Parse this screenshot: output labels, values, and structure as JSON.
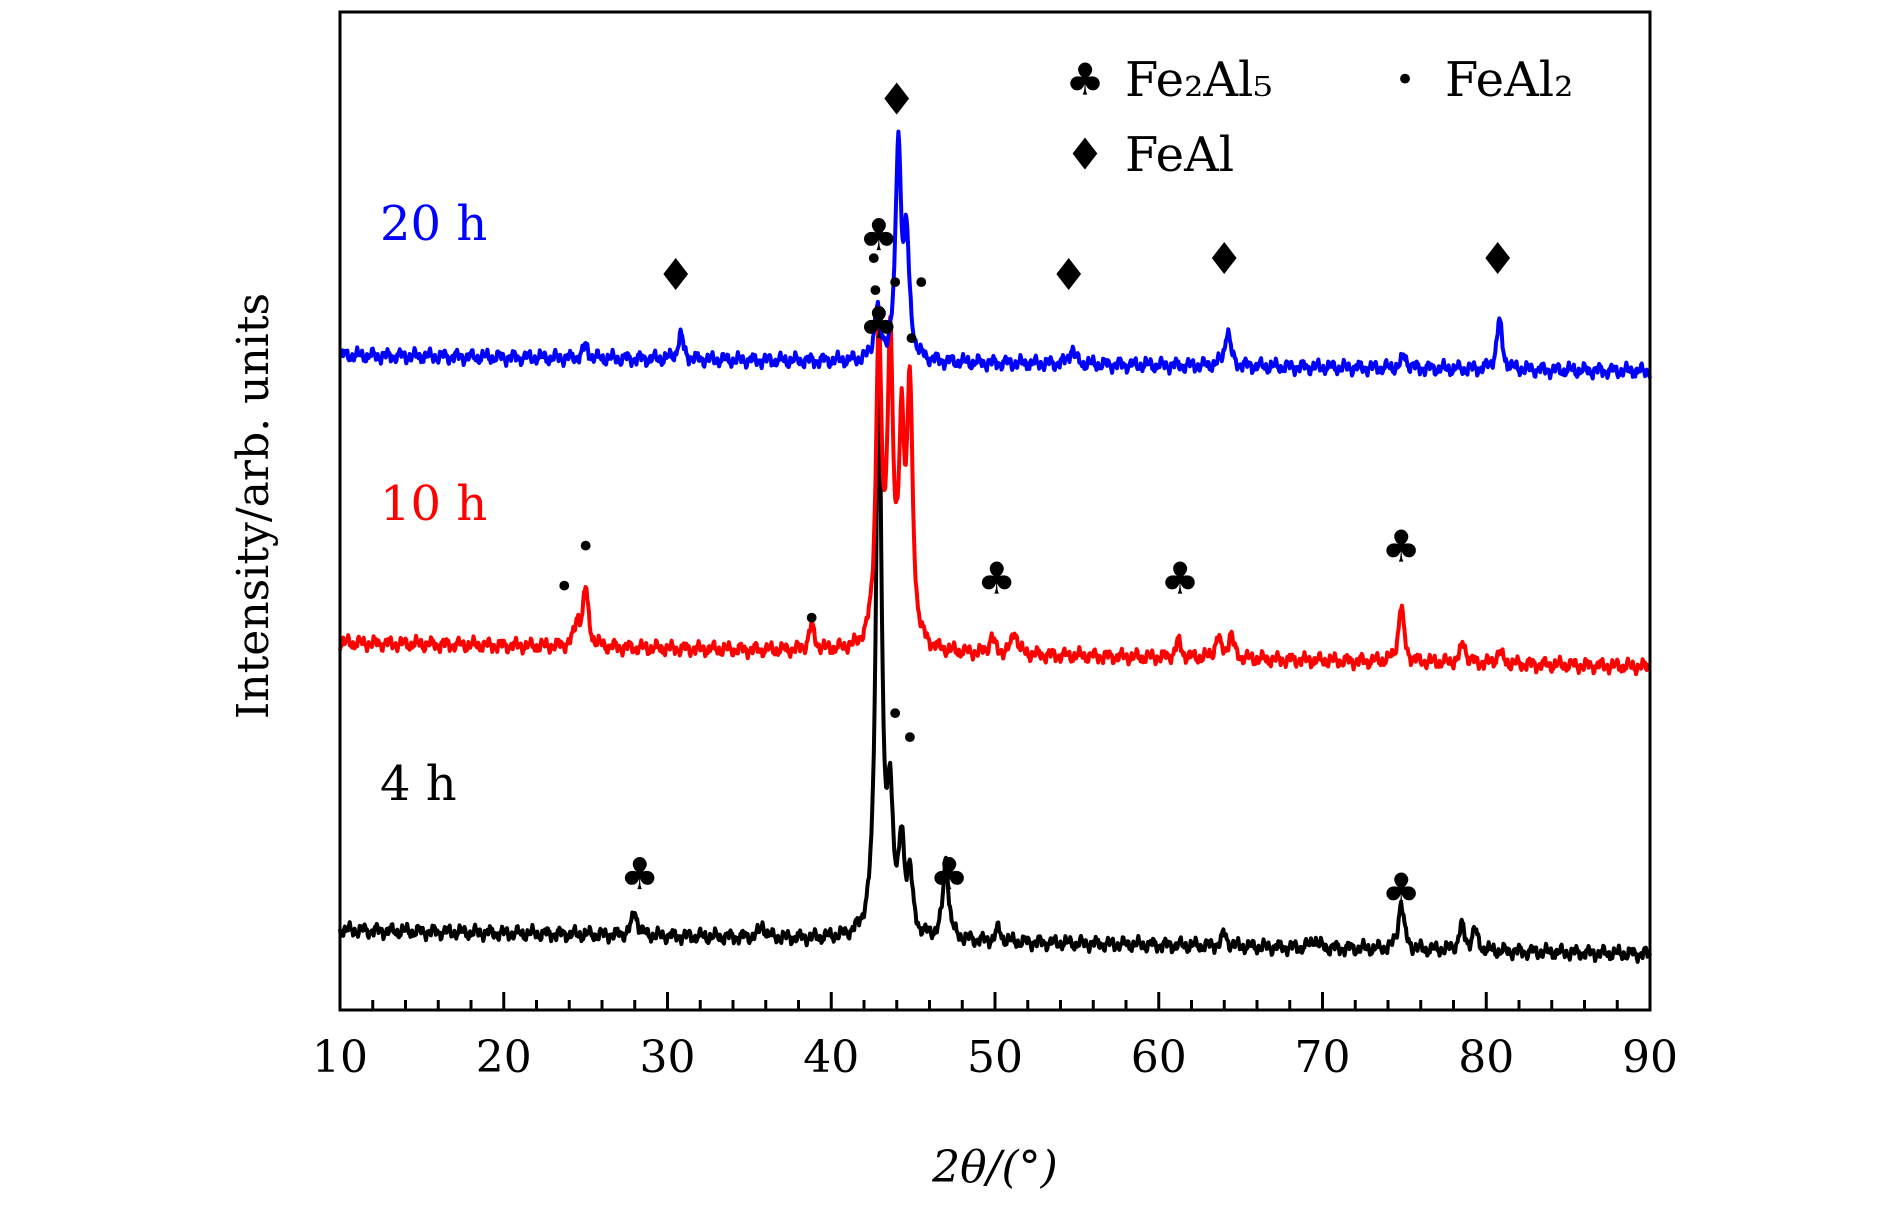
{
  "chart_data": {
    "type": "line",
    "xlabel": "2θ/(°)",
    "ylabel": "Intensity/arb. units",
    "xlim": [
      10,
      90
    ],
    "ylim": [
      0,
      125
    ],
    "x_ticks": [
      10,
      20,
      30,
      40,
      50,
      60,
      70,
      80,
      90
    ],
    "y_ticks_shown": false,
    "grid": false,
    "legend_position": "top-right",
    "legend": [
      {
        "symbol": "♣",
        "label": "Fe₂Al₅"
      },
      {
        "symbol": "•",
        "label": "FeAl₂"
      },
      {
        "symbol": "♦",
        "label": "FeAl"
      }
    ],
    "series": [
      {
        "name": "4 h",
        "color": "#000000",
        "baseline_start": 10.0,
        "baseline_end": 7.0,
        "peaks": [
          [
            28.0,
            3
          ],
          [
            35.8,
            1.5
          ],
          [
            42.9,
            74
          ],
          [
            43.6,
            16
          ],
          [
            44.3,
            11
          ],
          [
            44.8,
            7
          ],
          [
            47.0,
            10
          ],
          [
            50.2,
            1.5
          ],
          [
            64.0,
            1.5
          ],
          [
            69.5,
            1.2
          ],
          [
            74.8,
            6
          ],
          [
            78.5,
            3
          ],
          [
            79.3,
            2.5
          ]
        ],
        "annotations": [
          {
            "x": 28.3,
            "y": 17,
            "symbol": "♣"
          },
          {
            "x": 42.9,
            "y": 86,
            "symbol": "♣"
          },
          {
            "x": 43.9,
            "y": 37,
            "symbol": "•"
          },
          {
            "x": 44.8,
            "y": 34,
            "symbol": "•"
          },
          {
            "x": 47.2,
            "y": 17,
            "symbol": "♣"
          },
          {
            "x": 74.8,
            "y": 15,
            "symbol": "♣"
          }
        ]
      },
      {
        "name": "10 h",
        "color": "#ff0000",
        "baseline_start": 46.0,
        "baseline_end": 43.0,
        "peaks": [
          [
            24.5,
            3
          ],
          [
            25.0,
            7
          ],
          [
            38.8,
            3
          ],
          [
            42.9,
            39
          ],
          [
            43.6,
            37
          ],
          [
            44.3,
            25
          ],
          [
            44.8,
            31
          ],
          [
            49.8,
            2
          ],
          [
            51.2,
            3
          ],
          [
            61.2,
            2
          ],
          [
            63.6,
            2.5
          ],
          [
            64.4,
            3
          ],
          [
            74.8,
            7
          ],
          [
            78.6,
            2.5
          ],
          [
            80.8,
            1.5
          ]
        ],
        "annotations": [
          {
            "x": 23.7,
            "y": 53,
            "symbol": "•"
          },
          {
            "x": 25.0,
            "y": 58,
            "symbol": "•"
          },
          {
            "x": 38.8,
            "y": 49,
            "symbol": "•"
          },
          {
            "x": 42.9,
            "y": 97,
            "symbol": "♣"
          },
          {
            "x": 42.7,
            "y": 90,
            "symbol": "•"
          },
          {
            "x": 43.9,
            "y": 91,
            "symbol": "•"
          },
          {
            "x": 44.9,
            "y": 84,
            "symbol": "•"
          },
          {
            "x": 50.1,
            "y": 54,
            "symbol": "♣"
          },
          {
            "x": 61.3,
            "y": 54,
            "symbol": "♣"
          },
          {
            "x": 74.8,
            "y": 58,
            "symbol": "♣"
          }
        ]
      },
      {
        "name": "20 h",
        "color": "#0000ff",
        "baseline_start": 82.0,
        "baseline_end": 80.0,
        "peaks": [
          [
            25.0,
            1.5
          ],
          [
            30.8,
            3
          ],
          [
            42.8,
            6.5
          ],
          [
            44.1,
            27
          ],
          [
            44.6,
            14
          ],
          [
            54.7,
            2
          ],
          [
            64.2,
            4.5
          ],
          [
            75.0,
            1.5
          ],
          [
            80.8,
            6
          ]
        ],
        "annotations": [
          {
            "x": 30.5,
            "y": 92,
            "symbol": "♦"
          },
          {
            "x": 42.6,
            "y": 94,
            "symbol": "•"
          },
          {
            "x": 45.5,
            "y": 91,
            "symbol": "•"
          },
          {
            "x": 44.0,
            "y": 114,
            "symbol": "♦"
          },
          {
            "x": 54.5,
            "y": 92,
            "symbol": "♦"
          },
          {
            "x": 64.0,
            "y": 94,
            "symbol": "♦"
          },
          {
            "x": 80.7,
            "y": 94,
            "symbol": "♦"
          }
        ]
      }
    ]
  }
}
